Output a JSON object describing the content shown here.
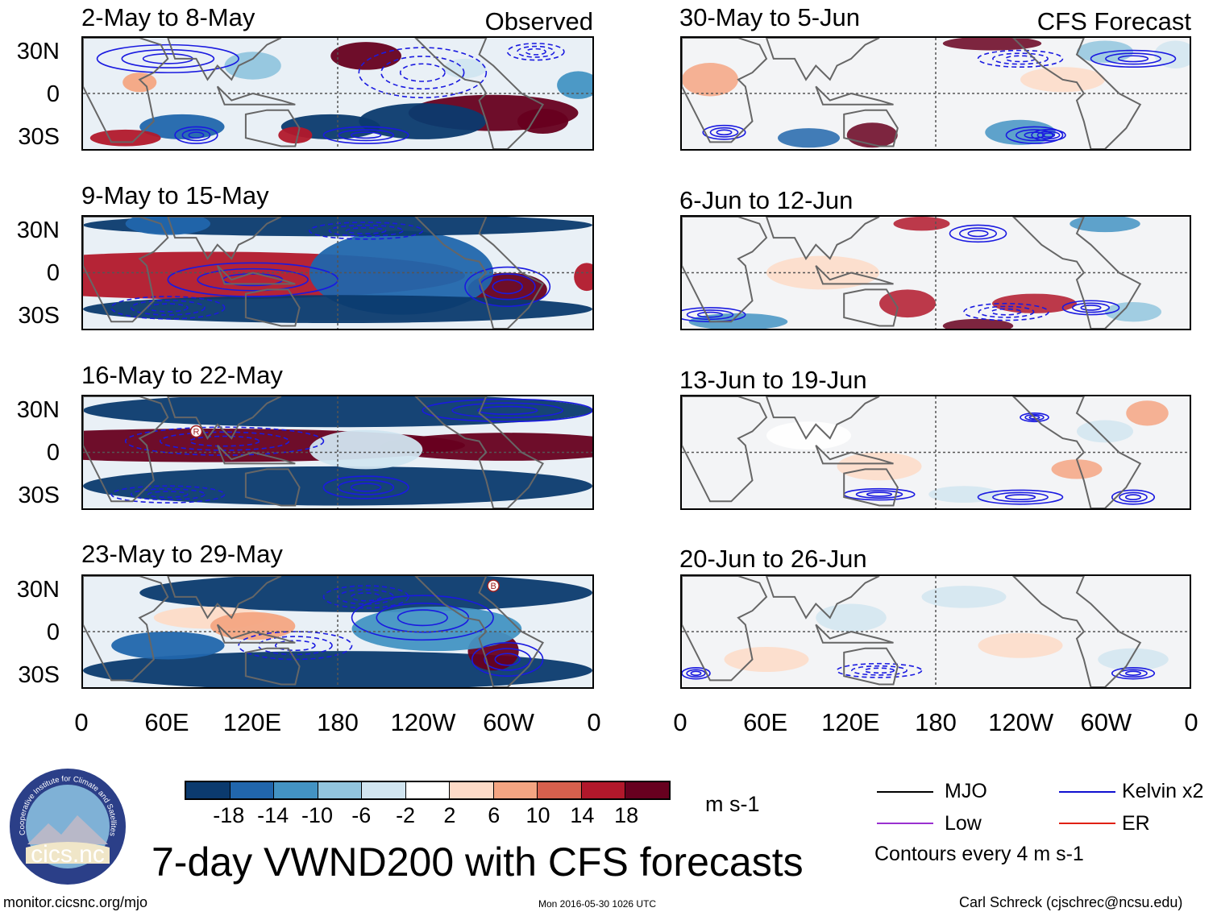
{
  "chart_data": {
    "type": "heatmap",
    "title": "7-day VWND200 with CFS forecasts",
    "units": "m s-1",
    "colorbar": {
      "levels": [
        "-18",
        "-14",
        "-10",
        "-6",
        "-2",
        "2",
        "6",
        "10",
        "14",
        "18"
      ],
      "colors": [
        "#0b3a6e",
        "#2166ac",
        "#4393c3",
        "#92c5de",
        "#d1e5f0",
        "#ffffff",
        "#fddbc7",
        "#f4a582",
        "#d6604d",
        "#b2182b",
        "#67001f"
      ]
    },
    "x_ticks": [
      "0",
      "60E",
      "120E",
      "180",
      "120W",
      "60W",
      "0"
    ],
    "y_ticks": [
      "30N",
      "0",
      "30S"
    ],
    "observed_label": "Observed",
    "forecast_label": "CFS Forecast",
    "panels": [
      {
        "title": "2-May to 8-May",
        "source": "observed"
      },
      {
        "title": "9-May to 15-May",
        "source": "observed"
      },
      {
        "title": "16-May to 22-May",
        "source": "observed"
      },
      {
        "title": "23-May to 29-May",
        "source": "observed"
      },
      {
        "title": "30-May to 5-Jun",
        "source": "forecast"
      },
      {
        "title": "6-Jun to 12-Jun",
        "source": "forecast"
      },
      {
        "title": "13-Jun to 19-Jun",
        "source": "forecast"
      },
      {
        "title": "20-Jun to 26-Jun",
        "source": "forecast"
      }
    ],
    "markers": [
      {
        "panel": "16-May to 22-May",
        "label": "R"
      },
      {
        "panel": "23-May to 29-May",
        "label": "B"
      }
    ]
  },
  "legend": {
    "items": [
      {
        "label": "MJO",
        "color": "#000000"
      },
      {
        "label": "Kelvin x2",
        "color": "#1010d0"
      },
      {
        "label": "Low",
        "color": "#9a30d0"
      },
      {
        "label": "ER",
        "color": "#e02010"
      }
    ],
    "contour_note": "Contours every 4 m s-1"
  },
  "footer": {
    "logo_text": "cics.nc",
    "logo_ring_text": "Cooperative Institute for Climate and Satellites",
    "url": "monitor.cicsnc.org/mjo",
    "timestamp": "Mon 2016-05-30 1026 UTC",
    "credit": "Carl Schreck (cjschrec@ncsu.edu)"
  }
}
